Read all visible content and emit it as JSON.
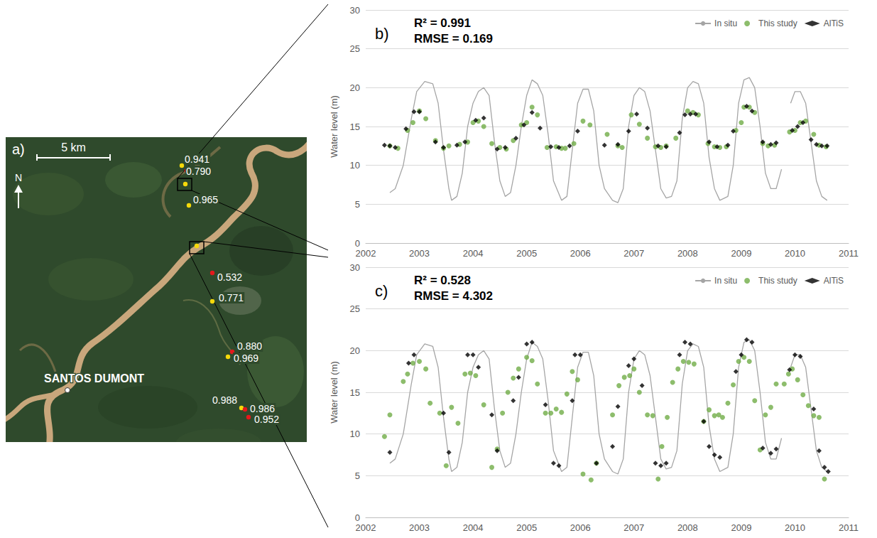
{
  "chart_data": [
    {
      "type": "line",
      "title": "b)",
      "annotations": [
        "R² = 0.991",
        "RMSE = 0.169"
      ],
      "y_label": "Water level (m)",
      "xlim": [
        2002,
        2011
      ],
      "xticks": [
        2002,
        2003,
        2004,
        2005,
        2006,
        2007,
        2008,
        2009,
        2010,
        2011
      ],
      "ylim": [
        0,
        30
      ],
      "yticks": [
        0,
        5,
        10,
        15,
        20,
        25,
        30
      ],
      "grid": true,
      "legend": "upper right",
      "series": [
        {
          "name": "In situ",
          "type": "line",
          "color": "#a5a5a5",
          "line_style": "solid",
          "x": [
            2002.45,
            2002.55,
            2002.7,
            2002.85,
            2002.95,
            2003.1,
            2003.25,
            2003.35,
            2003.45,
            2003.55,
            2003.6,
            2003.7,
            2003.8,
            2003.9,
            2004.0,
            2004.1,
            2004.2,
            2004.3,
            2004.4,
            2004.5,
            2004.6,
            2004.7,
            2004.8,
            2004.9,
            2005.0,
            2005.1,
            2005.2,
            2005.3,
            2005.4,
            2005.5,
            2005.65,
            2005.75,
            2005.85,
            2005.95,
            2006.05,
            2006.15,
            2006.25,
            2006.35,
            2006.45,
            2006.6,
            2006.7,
            2006.8,
            2006.9,
            2007.0,
            2007.1,
            2007.2,
            2007.3,
            2007.4,
            2007.5,
            2007.6,
            2007.7,
            2007.8,
            2007.9,
            2008.0,
            2008.1,
            2008.2,
            2008.3,
            2008.4,
            2008.5,
            2008.6,
            2008.75,
            2008.85,
            2008.95,
            2009.05,
            2009.15,
            2009.25,
            2009.35,
            2009.45,
            2009.55,
            2009.65,
            2009.75,
            2009.8,
            2009.92,
            2010.0,
            2010.1,
            2010.2,
            2010.3,
            2010.4,
            2010.5,
            2010.6
          ],
          "values": [
            6.5,
            7,
            10,
            16,
            19.5,
            20.8,
            20.5,
            18,
            12,
            7,
            5.5,
            6,
            9,
            15,
            18,
            19.5,
            20,
            19,
            13,
            8,
            6,
            6.5,
            10,
            15,
            19,
            21,
            20.5,
            19,
            14,
            8,
            5.5,
            6,
            12,
            18,
            19.8,
            19.8,
            17,
            10,
            7,
            5.5,
            5.2,
            7,
            15,
            19,
            20,
            19.5,
            17,
            12,
            7,
            5.8,
            6,
            8,
            16,
            20,
            20.8,
            20.5,
            18,
            11,
            7,
            5.5,
            6,
            10,
            18,
            21,
            21.3,
            20,
            15,
            9,
            7,
            7,
            9.5,
            null,
            18,
            19.5,
            19.5,
            18,
            13,
            8,
            6,
            5.5
          ]
        },
        {
          "name": "This study",
          "type": "scatter",
          "color": "#70ad47",
          "marker": "circle",
          "x": [
            2002.45,
            2002.6,
            2002.78,
            2002.88,
            2003.0,
            2003.12,
            2003.3,
            2003.45,
            2003.55,
            2003.75,
            2003.9,
            2004.0,
            2004.1,
            2004.2,
            2004.35,
            2004.5,
            2004.62,
            2004.75,
            2004.9,
            2005.0,
            2005.1,
            2005.2,
            2005.38,
            2005.55,
            2005.65,
            2005.72,
            2005.88,
            2006.05,
            2006.18,
            2006.5,
            2006.7,
            2006.78,
            2006.95,
            2007.1,
            2007.25,
            2007.4,
            2007.5,
            2007.6,
            2007.78,
            2008.0,
            2008.1,
            2008.2,
            2008.38,
            2008.5,
            2008.6,
            2008.72,
            2008.9,
            2009.0,
            2009.05,
            2009.15,
            2009.25,
            2009.4,
            2009.5,
            2009.62,
            2009.9,
            2010.0,
            2010.1,
            2010.2,
            2010.35,
            2010.45,
            2010.58
          ],
          "values": [
            12.5,
            12.2,
            14.5,
            15.5,
            17,
            16,
            13.2,
            12.2,
            12.5,
            12.7,
            13,
            15.5,
            15.7,
            15,
            12.8,
            12.3,
            12.1,
            13.2,
            15.2,
            15.5,
            17.5,
            16.5,
            12.3,
            12.4,
            12.2,
            12.2,
            12.8,
            15.7,
            15.2,
            14,
            12.5,
            12.3,
            16.5,
            15.3,
            13.5,
            12.4,
            12.3,
            12.5,
            13.5,
            17,
            16.8,
            16.5,
            12.8,
            12.4,
            12.3,
            12.4,
            14.5,
            15.5,
            17.5,
            17.5,
            16.8,
            12.8,
            12.5,
            12.6,
            14.3,
            14.5,
            15.5,
            15.7,
            14,
            12.6,
            12.4
          ]
        },
        {
          "name": "AlTiS",
          "type": "scatter",
          "color": "#000000",
          "marker": "diamond",
          "x": [
            2002.35,
            2002.45,
            2002.55,
            2002.75,
            2002.9,
            2003.0,
            2003.3,
            2003.45,
            2003.7,
            2003.85,
            2004.05,
            2004.2,
            2004.45,
            2004.6,
            2004.8,
            2004.95,
            2005.1,
            2005.25,
            2005.45,
            2005.6,
            2005.8,
            2005.95,
            2006.45,
            2006.7,
            2006.9,
            2007.05,
            2007.25,
            2007.45,
            2007.6,
            2007.85,
            2007.95,
            2008.05,
            2008.15,
            2008.4,
            2008.55,
            2008.75,
            2008.85,
            2009.1,
            2009.2,
            2009.4,
            2009.55,
            2009.65,
            2009.95,
            2010.05,
            2010.15,
            2010.3,
            2010.4,
            2010.5,
            2010.6
          ],
          "values": [
            12.6,
            12.5,
            12.3,
            14.7,
            16.9,
            16.9,
            13,
            12.3,
            12.6,
            13,
            15.8,
            16.1,
            12.1,
            12.3,
            13.5,
            15.2,
            16.8,
            14.8,
            12.4,
            12.3,
            12.5,
            14.4,
            12.6,
            12.7,
            14.4,
            16.6,
            14.8,
            12.5,
            12.4,
            14.2,
            16.5,
            16.6,
            16.6,
            13,
            12.4,
            12.6,
            14.4,
            17.6,
            17,
            13,
            12.7,
            12.9,
            14.5,
            15,
            15.5,
            13.3,
            12.7,
            12.5,
            12.5
          ]
        }
      ]
    },
    {
      "type": "line",
      "title": "c)",
      "annotations": [
        "R² = 0.528",
        "RMSE = 4.302"
      ],
      "y_label": "Water level (m)",
      "xlim": [
        2002,
        2011
      ],
      "xticks": [
        2002,
        2003,
        2004,
        2005,
        2006,
        2007,
        2008,
        2009,
        2010,
        2011
      ],
      "ylim": [
        0,
        30
      ],
      "yticks": [
        0,
        5,
        10,
        15,
        20,
        25,
        30
      ],
      "grid": true,
      "legend": "upper right",
      "series": [
        {
          "name": "In situ",
          "type": "line",
          "color": "#a5a5a5",
          "line_style": "solid",
          "x": [
            2002.45,
            2002.55,
            2002.7,
            2002.85,
            2002.95,
            2003.1,
            2003.25,
            2003.35,
            2003.45,
            2003.55,
            2003.6,
            2003.7,
            2003.8,
            2003.9,
            2004.0,
            2004.1,
            2004.2,
            2004.3,
            2004.4,
            2004.5,
            2004.6,
            2004.7,
            2004.8,
            2004.9,
            2005.0,
            2005.1,
            2005.2,
            2005.3,
            2005.4,
            2005.5,
            2005.65,
            2005.75,
            2005.85,
            2005.95,
            2006.05,
            2006.15,
            2006.25,
            2006.35,
            2006.45,
            2006.6,
            2006.7,
            2006.8,
            2006.9,
            2007.0,
            2007.1,
            2007.2,
            2007.3,
            2007.4,
            2007.5,
            2007.6,
            2007.7,
            2007.8,
            2007.9,
            2008.0,
            2008.1,
            2008.2,
            2008.3,
            2008.4,
            2008.5,
            2008.6,
            2008.75,
            2008.85,
            2008.95,
            2009.05,
            2009.15,
            2009.25,
            2009.35,
            2009.45,
            2009.55,
            2009.65,
            2009.75,
            2009.8,
            2009.92,
            2010.0,
            2010.1,
            2010.2,
            2010.3,
            2010.4,
            2010.5,
            2010.6
          ],
          "values": [
            6.5,
            7,
            10,
            16,
            19.5,
            20.8,
            20.5,
            18,
            12,
            7,
            5.5,
            6,
            9,
            15,
            18,
            19.5,
            20,
            19,
            13,
            8,
            6,
            6.5,
            10,
            15,
            19,
            21,
            20.5,
            19,
            14,
            8,
            5.5,
            6,
            12,
            18,
            19.8,
            19.8,
            17,
            10,
            7,
            5.5,
            5.2,
            7,
            15,
            19,
            20,
            19.5,
            17,
            12,
            7,
            5.8,
            6,
            8,
            16,
            20,
            20.8,
            20.5,
            18,
            11,
            7,
            5.5,
            6,
            10,
            18,
            21,
            21.3,
            20,
            15,
            9,
            7,
            7,
            9.5,
            null,
            18,
            19.5,
            19.5,
            18,
            13,
            8,
            6,
            5.5
          ]
        },
        {
          "name": "This study",
          "type": "scatter",
          "color": "#70ad47",
          "marker": "circle",
          "x": [
            2002.35,
            2002.45,
            2002.7,
            2002.78,
            2002.88,
            2003.0,
            2003.12,
            2003.2,
            2003.38,
            2003.5,
            2003.6,
            2003.72,
            2003.85,
            2003.95,
            2004.05,
            2004.2,
            2004.35,
            2004.45,
            2004.55,
            2004.65,
            2004.75,
            2004.85,
            2005.0,
            2005.1,
            2005.2,
            2005.35,
            2005.45,
            2005.55,
            2005.65,
            2005.75,
            2005.85,
            2005.95,
            2006.05,
            2006.2,
            2006.3,
            2006.6,
            2006.72,
            2006.82,
            2006.92,
            2007.0,
            2007.1,
            2007.25,
            2007.35,
            2007.45,
            2007.52,
            2007.62,
            2007.72,
            2007.82,
            2007.92,
            2008.02,
            2008.12,
            2008.3,
            2008.4,
            2008.5,
            2008.58,
            2008.65,
            2008.75,
            2008.85,
            2008.95,
            2009.05,
            2009.15,
            2009.25,
            2009.35,
            2009.45,
            2009.55,
            2009.65,
            2009.8,
            2009.88,
            2009.95,
            2010.05,
            2010.15,
            2010.25,
            2010.35,
            2010.45,
            2010.55
          ],
          "values": [
            9.7,
            12.3,
            16.3,
            17.2,
            18.5,
            18.7,
            17.8,
            13.7,
            12.5,
            6.2,
            13.2,
            11.3,
            17.2,
            17.3,
            17,
            13.5,
            6,
            8.2,
            12.5,
            15,
            16.7,
            17.8,
            19.2,
            18.8,
            16,
            12.5,
            12.5,
            13,
            12.6,
            14.8,
            17.5,
            16.5,
            5.2,
            4.5,
            6.5,
            12.3,
            15.8,
            16.8,
            17,
            17.8,
            15,
            12.3,
            12.2,
            4.6,
            8.5,
            12,
            16.2,
            17.8,
            18.7,
            18.6,
            18.4,
            11.5,
            12.9,
            12.2,
            12.3,
            12,
            13.7,
            15.9,
            18.7,
            19.2,
            18.7,
            14,
            8.1,
            12.3,
            13.2,
            16,
            16,
            17.2,
            17.8,
            16.5,
            14.7,
            13.4,
            12.2,
            12,
            4.6
          ]
        },
        {
          "name": "AlTiS",
          "type": "scatter",
          "color": "#000000",
          "marker": "diamond",
          "x": [
            2002.45,
            2002.8,
            2002.9,
            2003.45,
            2003.55,
            2003.9,
            2004.0,
            2004.1,
            2004.35,
            2004.45,
            2004.75,
            2004.85,
            2005.0,
            2005.1,
            2005.35,
            2005.5,
            2005.6,
            2005.85,
            2005.9,
            2006.0,
            2006.3,
            2006.6,
            2006.7,
            2006.9,
            2007.0,
            2007.15,
            2007.4,
            2007.5,
            2007.6,
            2007.85,
            2007.95,
            2008.05,
            2008.3,
            2008.4,
            2008.5,
            2008.6,
            2008.9,
            2009.0,
            2009.1,
            2009.2,
            2009.4,
            2009.55,
            2009.65,
            2009.9,
            2010.0,
            2010.1,
            2010.35,
            2010.45,
            2010.55,
            2010.62
          ],
          "values": [
            7.8,
            18.5,
            19.5,
            12.5,
            7.8,
            19.5,
            19.5,
            18,
            12.3,
            8,
            14,
            16.8,
            20.8,
            21,
            13.5,
            6.5,
            6.2,
            14,
            19.5,
            19.5,
            6.5,
            8.5,
            13.3,
            18.2,
            19,
            15.8,
            6.5,
            6.2,
            6.5,
            19.5,
            21,
            20.8,
            11.5,
            8.5,
            7.5,
            7.2,
            17.5,
            19.5,
            21.3,
            21,
            8.3,
            7.7,
            8.2,
            17.7,
            19.5,
            19.3,
            13,
            8,
            6,
            5.5
          ]
        }
      ]
    }
  ],
  "map": {
    "title": "a)",
    "scale": "5 km",
    "north": "N",
    "place": "SANTOS DUMONT",
    "points": [
      {
        "value": 0.941,
        "color": "#f5d90a"
      },
      {
        "value": 0.79,
        "label": "0.790",
        "color": "#e3191c"
      },
      {
        "value": 0.965,
        "color": "#f5d90a"
      },
      {
        "value": 0.532,
        "color": "#e3191c"
      },
      {
        "value": 0.771,
        "color": "#f5d90a"
      },
      {
        "value": 0.88,
        "label": "0.880",
        "color": "#e3191c"
      },
      {
        "value": 0.969,
        "color": "#f5d90a"
      },
      {
        "value": 0.988,
        "color": "#f5d90a"
      },
      {
        "value": 0.986,
        "color": "#e3191c"
      },
      {
        "value": 0.952,
        "color": "#e3191c"
      }
    ]
  }
}
